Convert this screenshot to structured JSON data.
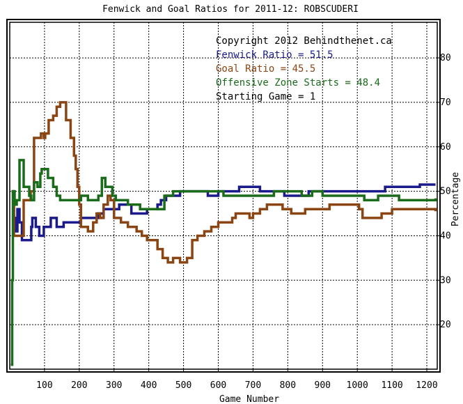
{
  "chart_data": {
    "type": "line",
    "title": "Fenwick and Goal Ratios for 2011-12: ROBSCUDERI",
    "xlabel": "Game Number",
    "ylabel": "Percentage",
    "xlim": [
      0,
      1230
    ],
    "ylim": [
      10,
      88
    ],
    "x_ticks": [
      100,
      200,
      300,
      400,
      500,
      600,
      700,
      800,
      900,
      1000,
      1100,
      1200
    ],
    "y_ticks": [
      20,
      30,
      40,
      50,
      60,
      70,
      80
    ],
    "grid": true,
    "legend_lines": [
      {
        "text": "Copyright 2012 Behindthenet.ca",
        "color": "#000000"
      },
      {
        "text": "Fenwick Ratio = 51.5",
        "color": "#1a1a8c"
      },
      {
        "text": "Goal Ratio = 45.5",
        "color": "#8b4513"
      },
      {
        "text": "Offensive Zone Starts = 48.4",
        "color": "#1a6b1a"
      },
      {
        "text": "Starting Game = 1",
        "color": "#000000"
      }
    ],
    "series": [
      {
        "name": "Fenwick Ratio",
        "color": "#1a1a8c",
        "points": [
          [
            5,
            50
          ],
          [
            10,
            50
          ],
          [
            12,
            44
          ],
          [
            15,
            41
          ],
          [
            20,
            41
          ],
          [
            22,
            46
          ],
          [
            28,
            43
          ],
          [
            35,
            39
          ],
          [
            60,
            39
          ],
          [
            62,
            42
          ],
          [
            65,
            44
          ],
          [
            75,
            42
          ],
          [
            85,
            40
          ],
          [
            95,
            40
          ],
          [
            98,
            42
          ],
          [
            110,
            42
          ],
          [
            118,
            44
          ],
          [
            135,
            42
          ],
          [
            145,
            42
          ],
          [
            155,
            43
          ],
          [
            200,
            43
          ],
          [
            205,
            44
          ],
          [
            245,
            44
          ],
          [
            255,
            45
          ],
          [
            270,
            46
          ],
          [
            300,
            46
          ],
          [
            315,
            47
          ],
          [
            350,
            45
          ],
          [
            380,
            45
          ],
          [
            395,
            46
          ],
          [
            420,
            46
          ],
          [
            425,
            47
          ],
          [
            435,
            48
          ],
          [
            450,
            49
          ],
          [
            470,
            49
          ],
          [
            490,
            50
          ],
          [
            530,
            50
          ],
          [
            570,
            49
          ],
          [
            600,
            50
          ],
          [
            640,
            50
          ],
          [
            660,
            51
          ],
          [
            720,
            50
          ],
          [
            770,
            50
          ],
          [
            790,
            49
          ],
          [
            830,
            49
          ],
          [
            860,
            50
          ],
          [
            890,
            50
          ],
          [
            920,
            50
          ],
          [
            950,
            50
          ],
          [
            990,
            50
          ],
          [
            1040,
            50
          ],
          [
            1080,
            51
          ],
          [
            1130,
            51
          ],
          [
            1180,
            51.5
          ],
          [
            1225,
            51.5
          ]
        ]
      },
      {
        "name": "Goal Ratio",
        "color": "#8b4513",
        "points": [
          [
            5,
            50
          ],
          [
            8,
            50
          ],
          [
            12,
            40
          ],
          [
            35,
            40
          ],
          [
            40,
            48
          ],
          [
            55,
            48
          ],
          [
            60,
            50
          ],
          [
            70,
            62
          ],
          [
            80,
            62
          ],
          [
            90,
            63
          ],
          [
            98,
            62
          ],
          [
            102,
            63
          ],
          [
            112,
            66
          ],
          [
            125,
            67
          ],
          [
            135,
            69
          ],
          [
            145,
            70
          ],
          [
            155,
            70
          ],
          [
            162,
            66
          ],
          [
            175,
            62
          ],
          [
            185,
            58
          ],
          [
            190,
            55
          ],
          [
            195,
            51
          ],
          [
            200,
            47
          ],
          [
            205,
            42
          ],
          [
            225,
            41
          ],
          [
            240,
            43
          ],
          [
            250,
            45
          ],
          [
            260,
            44
          ],
          [
            270,
            47
          ],
          [
            282,
            49
          ],
          [
            290,
            48
          ],
          [
            300,
            44
          ],
          [
            320,
            43
          ],
          [
            340,
            42
          ],
          [
            365,
            41
          ],
          [
            380,
            40
          ],
          [
            395,
            39
          ],
          [
            410,
            39
          ],
          [
            425,
            37
          ],
          [
            440,
            35
          ],
          [
            455,
            34
          ],
          [
            470,
            35
          ],
          [
            490,
            34
          ],
          [
            510,
            35
          ],
          [
            525,
            39
          ],
          [
            540,
            40
          ],
          [
            560,
            41
          ],
          [
            580,
            42
          ],
          [
            600,
            43
          ],
          [
            620,
            43
          ],
          [
            640,
            44
          ],
          [
            650,
            45
          ],
          [
            670,
            45
          ],
          [
            690,
            44
          ],
          [
            700,
            45
          ],
          [
            720,
            46
          ],
          [
            740,
            47
          ],
          [
            770,
            47
          ],
          [
            785,
            46
          ],
          [
            810,
            45
          ],
          [
            830,
            45
          ],
          [
            850,
            46
          ],
          [
            880,
            46
          ],
          [
            920,
            47
          ],
          [
            960,
            47
          ],
          [
            990,
            47
          ],
          [
            1005,
            46
          ],
          [
            1015,
            44
          ],
          [
            1040,
            44
          ],
          [
            1070,
            45
          ],
          [
            1100,
            46
          ],
          [
            1150,
            46
          ],
          [
            1180,
            46
          ],
          [
            1225,
            45.5
          ]
        ]
      },
      {
        "name": "Offensive Zone Starts",
        "color": "#1a6b1a",
        "points": [
          [
            3,
            11
          ],
          [
            5,
            11
          ],
          [
            7,
            30
          ],
          [
            9,
            50
          ],
          [
            14,
            47
          ],
          [
            20,
            48
          ],
          [
            28,
            57
          ],
          [
            34,
            57
          ],
          [
            40,
            51
          ],
          [
            52,
            51
          ],
          [
            56,
            49
          ],
          [
            62,
            48
          ],
          [
            70,
            52
          ],
          [
            80,
            51
          ],
          [
            88,
            54
          ],
          [
            92,
            55
          ],
          [
            100,
            55
          ],
          [
            110,
            53
          ],
          [
            125,
            51
          ],
          [
            135,
            49
          ],
          [
            145,
            48
          ],
          [
            160,
            48
          ],
          [
            185,
            48
          ],
          [
            205,
            49
          ],
          [
            225,
            48
          ],
          [
            240,
            48
          ],
          [
            255,
            49
          ],
          [
            265,
            53
          ],
          [
            275,
            51
          ],
          [
            285,
            51
          ],
          [
            295,
            49
          ],
          [
            305,
            48
          ],
          [
            320,
            48
          ],
          [
            340,
            47
          ],
          [
            355,
            47
          ],
          [
            375,
            46
          ],
          [
            395,
            46
          ],
          [
            420,
            46
          ],
          [
            445,
            49
          ],
          [
            470,
            50
          ],
          [
            500,
            50
          ],
          [
            540,
            50
          ],
          [
            590,
            50
          ],
          [
            615,
            49
          ],
          [
            660,
            49
          ],
          [
            700,
            49
          ],
          [
            730,
            49
          ],
          [
            760,
            50
          ],
          [
            790,
            50
          ],
          [
            820,
            50
          ],
          [
            840,
            49
          ],
          [
            870,
            50
          ],
          [
            900,
            49
          ],
          [
            940,
            49
          ],
          [
            960,
            49
          ],
          [
            990,
            49
          ],
          [
            1020,
            48
          ],
          [
            1060,
            49
          ],
          [
            1090,
            49
          ],
          [
            1120,
            48
          ],
          [
            1160,
            48
          ],
          [
            1200,
            48
          ],
          [
            1225,
            48.4
          ]
        ]
      }
    ]
  }
}
